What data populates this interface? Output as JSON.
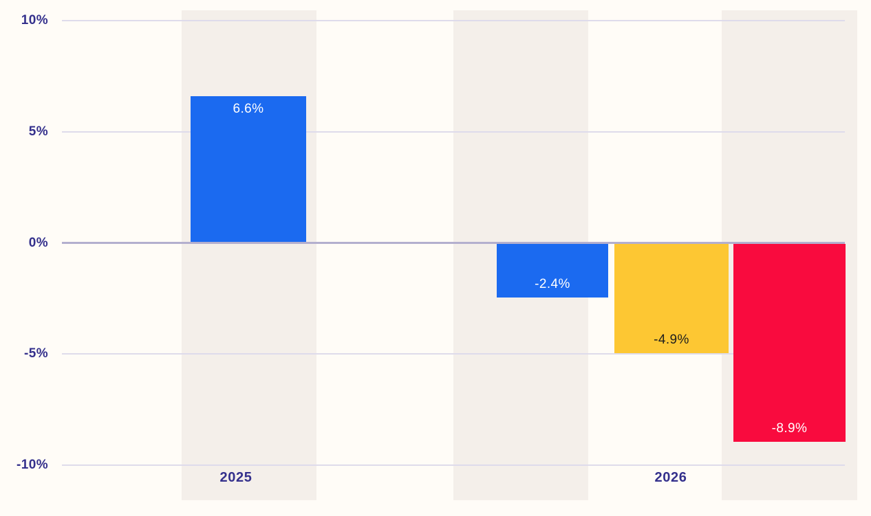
{
  "chart_data": {
    "type": "bar",
    "title": "",
    "xlabel": "",
    "ylabel": "",
    "categories": [
      "2025",
      "2026"
    ],
    "series": [
      {
        "name": "blue-series",
        "color": "#1b6af0",
        "label_color": "#ffffff",
        "values": [
          6.6,
          -2.4
        ],
        "labels": [
          "6.6%",
          "-2.4%"
        ]
      },
      {
        "name": "yellow-series",
        "color": "#fdc733",
        "label_color": "#1e1e1e",
        "values": [
          null,
          -4.9
        ],
        "labels": [
          null,
          "-4.9%"
        ]
      },
      {
        "name": "red-series",
        "color": "#f90b3e",
        "label_color": "#ffffff",
        "values": [
          null,
          -8.9
        ],
        "labels": [
          null,
          "-8.9%"
        ]
      }
    ],
    "yticks": [
      {
        "label": "10%",
        "value": 10
      },
      {
        "label": "5%",
        "value": 5
      },
      {
        "label": "0%",
        "value": 0
      },
      {
        "label": "-5%",
        "value": -5
      },
      {
        "label": "-10%",
        "value": -10
      }
    ],
    "ylim": [
      -10,
      10
    ],
    "grid": true,
    "legend": false,
    "colors": {
      "background": "#fffcf7",
      "stripe": "#f4efea",
      "gridline": "#dedbeb",
      "zero_line": "#b3afce",
      "axis_text": "#34308c"
    }
  }
}
